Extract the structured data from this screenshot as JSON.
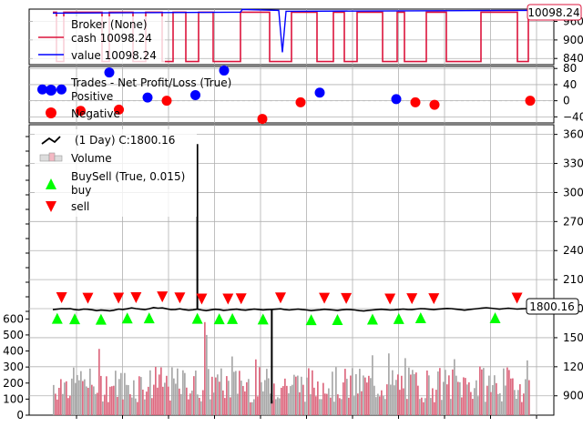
{
  "chart_data": [
    {
      "panel": "broker",
      "type": "line",
      "legend": [
        "Broker (None)",
        "cash 10098.24",
        "value 10098.24"
      ],
      "series": [
        {
          "name": "cash",
          "color": "#dc143c"
        },
        {
          "name": "value",
          "color": "#0000ff"
        }
      ],
      "yticks": [
        "960",
        "900",
        "840"
      ],
      "ylim": [
        820,
        1000
      ],
      "last_value_label": "10098.24",
      "grid": true,
      "legend_position": "top-left"
    },
    {
      "panel": "trades",
      "type": "scatter",
      "legend": [
        "Trades - Net Profit/Loss (True)",
        "Positive",
        "Negative"
      ],
      "series": [
        {
          "name": "Positive",
          "color": "#0000ff",
          "points": [
            [
              1,
              28
            ],
            [
              3,
              28
            ],
            [
              8,
              70
            ],
            [
              12,
              8
            ],
            [
              17,
              14
            ],
            [
              20,
              75
            ],
            [
              30,
              20
            ],
            [
              38,
              4
            ]
          ]
        },
        {
          "name": "Negative",
          "color": "#ff0000",
          "points": [
            [
              5,
              -25
            ],
            [
              9,
              -22
            ],
            [
              14,
              0
            ],
            [
              24,
              -45
            ],
            [
              28,
              -4
            ],
            [
              40,
              -4
            ],
            [
              42,
              -10
            ],
            [
              52,
              0
            ]
          ]
        }
      ],
      "yticks": [
        "80",
        "40",
        "0",
        "−40"
      ],
      "ylim": [
        -55,
        85
      ],
      "grid": true,
      "legend_position": "top-left"
    },
    {
      "panel": "price",
      "type": "line",
      "legend": [
        "(1 Day) C:1800.16",
        "Volume",
        "BuySell (True, 0.015)",
        "buy",
        "sell"
      ],
      "close_color": "#000000",
      "close": [
        1790,
        1795,
        1800,
        1798,
        1800,
        1790,
        1786,
        1796,
        1794,
        1788,
        1780,
        1785,
        1782,
        1778,
        1784,
        1796,
        1792,
        1798,
        1808,
        1800,
        1795,
        1790,
        1799,
        1812,
        1805,
        1808,
        1798,
        1790,
        1792,
        1798,
        1790,
        1784,
        1788,
        1795,
        1786,
        1780,
        1787,
        1794,
        1790,
        1782,
        1786,
        1792,
        1795,
        1788,
        1784,
        1790,
        1796,
        1792,
        1787,
        1790,
        1792,
        1795,
        1798,
        1790,
        1786,
        1791,
        1796,
        1790,
        1786,
        1780,
        1784,
        1788,
        1794,
        1790,
        1786,
        1782,
        1788,
        1792,
        1790,
        1786,
        1780,
        1776,
        1782,
        1786,
        1790,
        1794,
        1790,
        1786,
        1788,
        1792,
        1796,
        1792,
        1790,
        1796,
        1800,
        1798,
        1794,
        1790,
        1795,
        1798,
        1802,
        1800,
        1795,
        1790,
        1784,
        1790,
        1796,
        1800,
        1806,
        1810,
        1805,
        1800,
        1795,
        1800,
        1804,
        1800,
        1796,
        1798,
        1800,
        1800
      ],
      "spikes": [
        {
          "index": 33,
          "value": 3500
        },
        {
          "index": 50,
          "value": 820
        }
      ],
      "buy_indices": [
        1,
        5,
        11,
        17,
        22,
        33,
        38,
        41,
        48,
        59,
        65,
        73,
        79,
        84,
        101
      ],
      "buy_color": "#00ff00",
      "sell_indices": [
        2,
        8,
        15,
        19,
        25,
        29,
        34,
        40,
        43,
        52,
        62,
        67,
        77,
        82,
        87,
        106
      ],
      "sell_color": "#ff0000",
      "yticks": [
        "3600",
        "3300",
        "3000",
        "2700",
        "2400",
        "2100",
        "1800",
        "1500",
        "1200",
        "900"
      ],
      "ylim": [
        700,
        3700
      ],
      "last_value_label": "1800.16",
      "grid": true,
      "legend_position": "top-left"
    },
    {
      "panel": "volume",
      "type": "bar",
      "up_color": "#dd6a80",
      "down_color": "#a9a9a9",
      "yticks": [
        "600",
        "500",
        "400",
        "300",
        "200",
        "100",
        "0"
      ],
      "ylim": [
        0,
        630
      ],
      "volume_seed": 7
    }
  ]
}
